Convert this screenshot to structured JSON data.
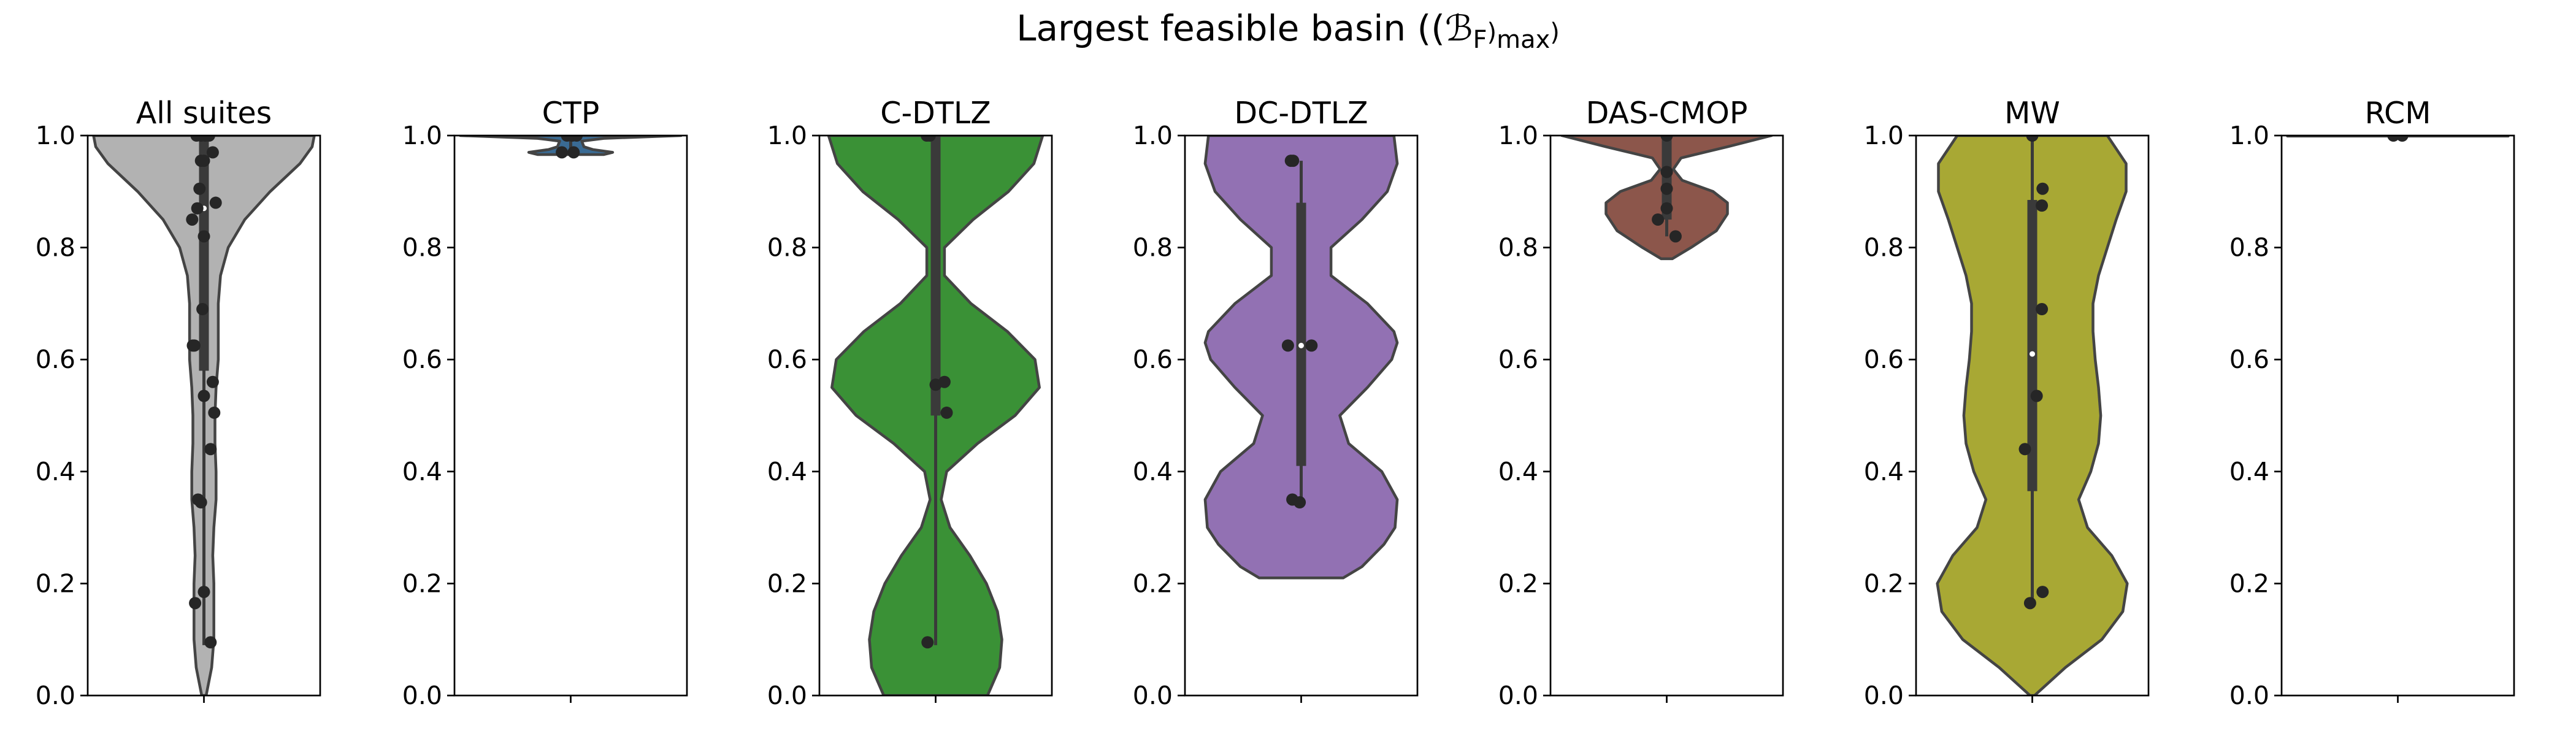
{
  "figure_title": "Largest feasible basin ((ℬ_F)_max)",
  "colors": {
    "all_suites": "#b2b2b2",
    "CTP": "#3a6b94",
    "C-DTLZ": "#3a9136",
    "DC-DTLZ": "#9271b3",
    "DAS-CMOP": "#8c564b",
    "MW": "#a8a834",
    "RCM": "#e0e0e0",
    "violet_edge": "#444444",
    "box": "#3a3a3a",
    "points": "#262626"
  },
  "chart_data": [
    {
      "type": "violin",
      "title": "All suites",
      "ylim": [
        0,
        1
      ],
      "yticks": [
        "0.0",
        "0.2",
        "0.4",
        "0.6",
        "0.8",
        "1.0"
      ],
      "color": "#b2b2b2",
      "density_profile": [
        [
          0.0,
          0.02
        ],
        [
          0.05,
          0.07
        ],
        [
          0.1,
          0.09
        ],
        [
          0.15,
          0.09
        ],
        [
          0.2,
          0.09
        ],
        [
          0.25,
          0.08
        ],
        [
          0.3,
          0.09
        ],
        [
          0.35,
          0.11
        ],
        [
          0.4,
          0.11
        ],
        [
          0.45,
          0.1
        ],
        [
          0.5,
          0.1
        ],
        [
          0.55,
          0.11
        ],
        [
          0.6,
          0.13
        ],
        [
          0.65,
          0.13
        ],
        [
          0.7,
          0.13
        ],
        [
          0.75,
          0.15
        ],
        [
          0.8,
          0.22
        ],
        [
          0.85,
          0.37
        ],
        [
          0.9,
          0.6
        ],
        [
          0.95,
          0.87
        ],
        [
          0.98,
          0.98
        ],
        [
          1.0,
          1.0
        ]
      ],
      "quartiles": [
        0.58,
        0.99
      ],
      "whiskers": [
        0.09,
        1.0
      ],
      "median": 0.87,
      "points": [
        [
          0.09,
          0.095
        ],
        [
          -0.12,
          0.165
        ],
        [
          0.0,
          0.185
        ],
        [
          -0.08,
          0.35
        ],
        [
          -0.04,
          0.345
        ],
        [
          0.09,
          0.44
        ],
        [
          0.14,
          0.505
        ],
        [
          0.0,
          0.535
        ],
        [
          0.12,
          0.56
        ],
        [
          -0.15,
          0.625
        ],
        [
          -0.13,
          0.625
        ],
        [
          -0.02,
          0.69
        ],
        [
          0.0,
          0.82
        ],
        [
          -0.16,
          0.85
        ],
        [
          0.16,
          0.88
        ],
        [
          -0.09,
          0.87
        ],
        [
          -0.06,
          0.905
        ],
        [
          -0.04,
          0.955
        ],
        [
          0.0,
          0.955
        ],
        [
          0.12,
          0.97
        ],
        [
          -0.1,
          1.0
        ],
        [
          -0.04,
          1.0
        ],
        [
          0.02,
          1.0
        ],
        [
          0.07,
          1.0
        ]
      ]
    },
    {
      "type": "violin",
      "title": "CTP",
      "ylim": [
        0,
        1
      ],
      "yticks": [
        "0.0",
        "0.2",
        "0.4",
        "0.6",
        "0.8",
        "1.0"
      ],
      "color": "#3a6b94",
      "density_profile": [
        [
          0.966,
          0.3
        ],
        [
          0.97,
          0.38
        ],
        [
          0.975,
          0.2
        ],
        [
          0.98,
          0.12
        ],
        [
          0.99,
          0.1
        ],
        [
          0.995,
          0.3
        ],
        [
          1.0,
          1.0
        ]
      ],
      "quartiles": [
        0.995,
        1.0
      ],
      "whiskers": [
        0.97,
        1.0
      ],
      "median": 1.0,
      "points": [
        [
          -0.12,
          0.97
        ],
        [
          0.04,
          0.97
        ],
        [
          -0.05,
          1.0
        ],
        [
          0.02,
          1.0
        ],
        [
          0.08,
          1.0
        ]
      ]
    },
    {
      "type": "violin",
      "title": "C-DTLZ",
      "ylim": [
        0,
        1
      ],
      "yticks": [
        "0.0",
        "0.2",
        "0.4",
        "0.6",
        "0.8",
        "1.0"
      ],
      "color": "#3a9136",
      "density_profile": [
        [
          0.0,
          0.47
        ],
        [
          0.05,
          0.58
        ],
        [
          0.1,
          0.6
        ],
        [
          0.15,
          0.56
        ],
        [
          0.2,
          0.46
        ],
        [
          0.25,
          0.31
        ],
        [
          0.3,
          0.13
        ],
        [
          0.35,
          0.05
        ],
        [
          0.4,
          0.1
        ],
        [
          0.45,
          0.38
        ],
        [
          0.5,
          0.72
        ],
        [
          0.55,
          0.94
        ],
        [
          0.6,
          0.9
        ],
        [
          0.65,
          0.65
        ],
        [
          0.7,
          0.32
        ],
        [
          0.75,
          0.08
        ],
        [
          0.8,
          0.08
        ],
        [
          0.85,
          0.34
        ],
        [
          0.9,
          0.66
        ],
        [
          0.95,
          0.89
        ],
        [
          1.0,
          0.97
        ]
      ],
      "quartiles": [
        0.5,
        1.0
      ],
      "whiskers": [
        0.09,
        1.0
      ],
      "median": 0.555,
      "points": [
        [
          -0.11,
          0.095
        ],
        [
          0.0,
          0.555
        ],
        [
          0.12,
          0.56
        ],
        [
          0.15,
          0.505
        ],
        [
          -0.12,
          1.0
        ],
        [
          -0.08,
          1.0
        ]
      ]
    },
    {
      "type": "violin",
      "title": "DC-DTLZ",
      "ylim": [
        0,
        1
      ],
      "yticks": [
        "0.0",
        "0.2",
        "0.4",
        "0.6",
        "0.8",
        "1.0"
      ],
      "color": "#9271b3",
      "density_profile": [
        [
          0.21,
          0.38
        ],
        [
          0.23,
          0.55
        ],
        [
          0.27,
          0.75
        ],
        [
          0.3,
          0.85
        ],
        [
          0.35,
          0.87
        ],
        [
          0.4,
          0.73
        ],
        [
          0.45,
          0.43
        ],
        [
          0.5,
          0.35
        ],
        [
          0.55,
          0.6
        ],
        [
          0.6,
          0.82
        ],
        [
          0.63,
          0.87
        ],
        [
          0.65,
          0.84
        ],
        [
          0.7,
          0.6
        ],
        [
          0.75,
          0.27
        ],
        [
          0.8,
          0.27
        ],
        [
          0.85,
          0.55
        ],
        [
          0.9,
          0.78
        ],
        [
          0.95,
          0.87
        ],
        [
          1.0,
          0.84
        ]
      ],
      "quartiles": [
        0.41,
        0.88
      ],
      "whiskers": [
        0.345,
        0.955
      ],
      "median": 0.625,
      "points": [
        [
          -0.12,
          0.35
        ],
        [
          -0.02,
          0.345
        ],
        [
          -0.18,
          0.625
        ],
        [
          0.14,
          0.625
        ],
        [
          -0.14,
          0.955
        ],
        [
          -0.11,
          0.955
        ]
      ]
    },
    {
      "type": "violin",
      "title": "DAS-CMOP",
      "ylim": [
        0,
        1
      ],
      "yticks": [
        "0.0",
        "0.2",
        "0.4",
        "0.6",
        "0.8",
        "1.0"
      ],
      "color": "#8c564b",
      "density_profile": [
        [
          0.78,
          0.05
        ],
        [
          0.8,
          0.22
        ],
        [
          0.83,
          0.45
        ],
        [
          0.86,
          0.55
        ],
        [
          0.88,
          0.55
        ],
        [
          0.9,
          0.42
        ],
        [
          0.92,
          0.14
        ],
        [
          0.94,
          0.06
        ],
        [
          0.96,
          0.13
        ],
        [
          0.98,
          0.55
        ],
        [
          1.0,
          0.95
        ]
      ],
      "quartiles": [
        0.85,
        1.0
      ],
      "whiskers": [
        0.82,
        1.0
      ],
      "median": 0.935,
      "points": [
        [
          -0.12,
          0.85
        ],
        [
          0.12,
          0.82
        ],
        [
          0.0,
          0.87
        ],
        [
          0.0,
          0.905
        ],
        [
          0.0,
          0.935
        ],
        [
          0.0,
          1.0
        ]
      ]
    },
    {
      "type": "violin",
      "title": "MW",
      "ylim": [
        0,
        1
      ],
      "yticks": [
        "0.0",
        "0.2",
        "0.4",
        "0.6",
        "0.8",
        "1.0"
      ],
      "color": "#a8a834",
      "density_profile": [
        [
          0.0,
          0.02
        ],
        [
          0.05,
          0.3
        ],
        [
          0.1,
          0.63
        ],
        [
          0.15,
          0.82
        ],
        [
          0.2,
          0.86
        ],
        [
          0.25,
          0.72
        ],
        [
          0.3,
          0.5
        ],
        [
          0.35,
          0.42
        ],
        [
          0.4,
          0.53
        ],
        [
          0.45,
          0.6
        ],
        [
          0.5,
          0.62
        ],
        [
          0.55,
          0.6
        ],
        [
          0.6,
          0.57
        ],
        [
          0.65,
          0.55
        ],
        [
          0.7,
          0.55
        ],
        [
          0.75,
          0.6
        ],
        [
          0.8,
          0.68
        ],
        [
          0.85,
          0.76
        ],
        [
          0.9,
          0.85
        ],
        [
          0.95,
          0.85
        ],
        [
          1.0,
          0.68
        ]
      ],
      "quartiles": [
        0.365,
        0.885
      ],
      "whiskers": [
        0.165,
        1.0
      ],
      "median": 0.61,
      "points": [
        [
          -0.03,
          0.165
        ],
        [
          0.14,
          0.185
        ],
        [
          -0.1,
          0.44
        ],
        [
          0.06,
          0.535
        ],
        [
          0.13,
          0.69
        ],
        [
          0.13,
          0.875
        ],
        [
          0.14,
          0.905
        ],
        [
          0.0,
          1.0
        ]
      ]
    },
    {
      "type": "violin",
      "title": "RCM",
      "ylim": [
        0,
        1
      ],
      "yticks": [
        "0.0",
        "0.2",
        "0.4",
        "0.6",
        "0.8",
        "1.0"
      ],
      "color": "#e0e0e0",
      "density_profile": [
        [
          0.999,
          1.0
        ],
        [
          1.0,
          1.0
        ]
      ],
      "quartiles": [
        1.0,
        1.0
      ],
      "whiskers": [
        1.0,
        1.0
      ],
      "median": 1.0,
      "points": [
        [
          -0.06,
          1.0
        ],
        [
          0.06,
          1.0
        ]
      ]
    }
  ]
}
